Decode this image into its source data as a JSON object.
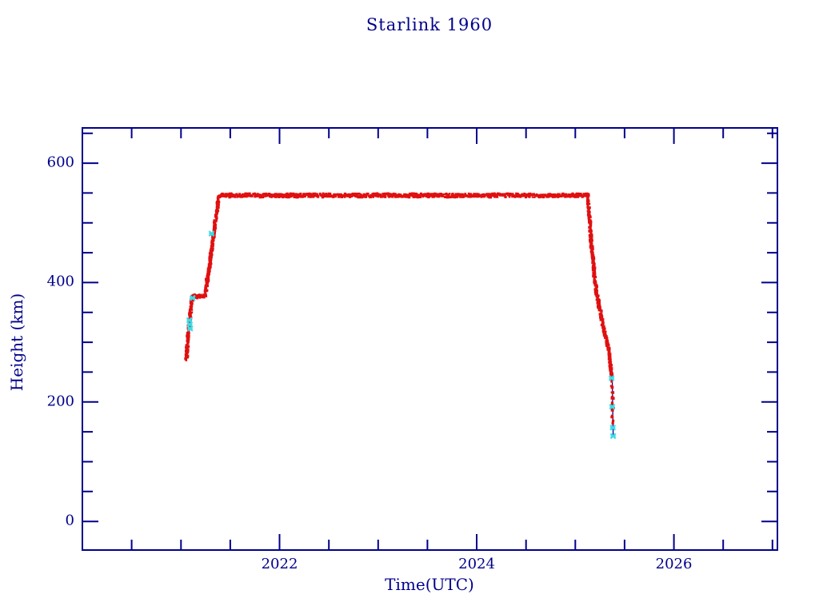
{
  "page": {
    "background": "#ffffff",
    "text_color": "#00008b"
  },
  "chart_data": {
    "type": "scatter",
    "title": "Starlink 1960",
    "xlabel": "Time(UTC)",
    "ylabel": "Height (km)",
    "axis_color": "#00008b",
    "grid": false,
    "legend_position": "none",
    "xlim": [
      2020.0,
      2027.05
    ],
    "ylim": [
      -48,
      659
    ],
    "x_major_ticks": [
      2022,
      2024,
      2026
    ],
    "x_minor_interval": 0.5,
    "y_major_ticks": [
      0,
      200,
      400,
      600
    ],
    "y_minor_interval": 50,
    "series": [
      {
        "name": "observed-height",
        "color": "#e01010",
        "style": "noisy-band",
        "sparse_from_x": 2025.367,
        "points": [
          [
            2021.055,
            272
          ],
          [
            2021.07,
            305
          ],
          [
            2021.09,
            338
          ],
          [
            2021.105,
            362
          ],
          [
            2021.115,
            375
          ],
          [
            2021.12,
            377
          ],
          [
            2021.245,
            377
          ],
          [
            2021.26,
            395
          ],
          [
            2021.3,
            440
          ],
          [
            2021.34,
            492
          ],
          [
            2021.385,
            544
          ],
          [
            2021.4,
            546
          ],
          [
            2022.0,
            546
          ],
          [
            2022.5,
            546
          ],
          [
            2023.0,
            546
          ],
          [
            2023.5,
            546
          ],
          [
            2024.0,
            546
          ],
          [
            2024.5,
            546
          ],
          [
            2025.0,
            546
          ],
          [
            2025.125,
            546
          ],
          [
            2025.145,
            505
          ],
          [
            2025.165,
            462
          ],
          [
            2025.185,
            430
          ],
          [
            2025.2,
            400
          ],
          [
            2025.215,
            383
          ],
          [
            2025.235,
            368
          ],
          [
            2025.26,
            345
          ],
          [
            2025.29,
            322
          ],
          [
            2025.32,
            300
          ],
          [
            2025.345,
            278
          ],
          [
            2025.36,
            258
          ],
          [
            2025.367,
            243
          ],
          [
            2025.373,
            227
          ],
          [
            2025.377,
            207
          ],
          [
            2025.38,
            187
          ],
          [
            2025.382,
            166
          ]
        ]
      },
      {
        "name": "predicted-height-markers",
        "color": "#3bdde8",
        "style": "x-markers",
        "points": [
          [
            2021.085,
            337
          ],
          [
            2021.09,
            330
          ],
          [
            2021.093,
            323
          ],
          [
            2021.118,
            374
          ],
          [
            2021.31,
            482
          ],
          [
            2025.368,
            240
          ],
          [
            2025.374,
            192
          ],
          [
            2025.38,
            157
          ],
          [
            2025.384,
            143
          ]
        ]
      }
    ],
    "tail_connector": {
      "color": "#00008b",
      "from": [
        2025.373,
        257
      ],
      "to": [
        2025.384,
        143
      ]
    }
  }
}
